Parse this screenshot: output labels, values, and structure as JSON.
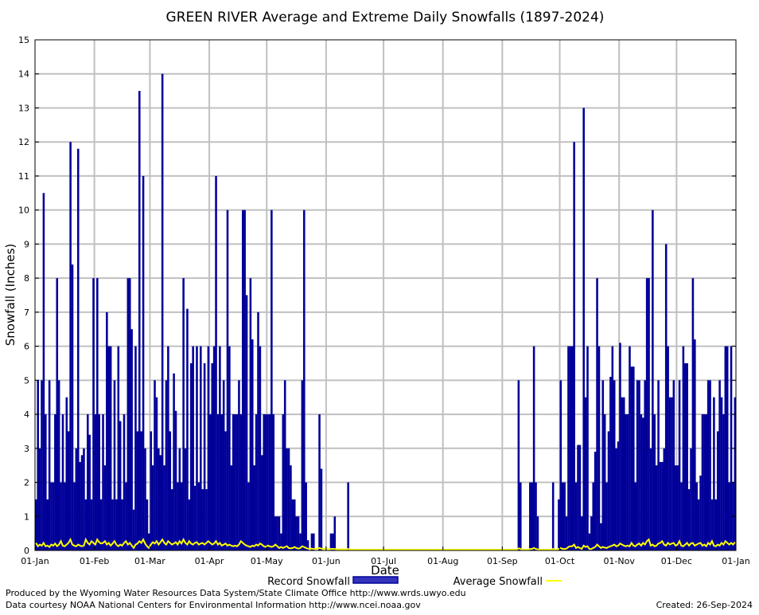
{
  "chart_data": {
    "type": "bar",
    "title": "GREEN RIVER Average and Extreme Daily Snowfalls (1897-2024)",
    "xlabel": "Date",
    "ylabel": "Snowfall (Inches)",
    "ylim": [
      0,
      15
    ],
    "yticks": [
      "0",
      "1",
      "2",
      "3",
      "4",
      "5",
      "6",
      "7",
      "8",
      "9",
      "10",
      "11",
      "12",
      "13",
      "14",
      "15"
    ],
    "xticks": [
      "01-Jan",
      "01-Feb",
      "01-Mar",
      "01-Apr",
      "01-May",
      "01-Jun",
      "01-Jul",
      "01-Aug",
      "01-Sep",
      "01-Oct",
      "01-Nov",
      "01-Dec",
      "01-Jan"
    ],
    "month_lengths": [
      31,
      29,
      31,
      30,
      31,
      30,
      31,
      31,
      30,
      31,
      30,
      31
    ],
    "grid": true,
    "legend_position": "bottom",
    "series": [
      {
        "name": "Record Snowfall",
        "type": "bar",
        "color": "#000099",
        "values_by_month": [
          [
            1.5,
            5,
            3,
            5,
            10.5,
            4,
            1.5,
            5,
            2,
            2,
            4,
            8,
            5,
            2,
            4,
            2,
            4.5,
            3.5,
            12,
            8.4,
            2,
            3,
            11.8,
            2.6,
            2.8,
            3,
            1.5,
            4,
            3.4,
            1.5,
            8
          ],
          [
            4,
            8,
            4,
            1.5,
            4,
            2.5,
            7,
            6,
            6,
            1.5,
            5,
            1.5,
            6,
            3.8,
            1.5,
            4,
            2,
            8,
            8,
            6.5,
            1.2,
            6,
            3.5,
            13.5,
            3.5,
            11,
            3,
            1.5,
            0.5
          ],
          [
            3.5,
            2.5,
            5,
            4.5,
            3,
            2.8,
            14,
            2.5,
            5,
            6,
            3.5,
            1.8,
            5.2,
            4.1,
            2,
            3,
            2,
            8,
            3,
            7.1,
            1.5,
            5.5,
            6,
            1.9,
            6,
            2,
            6,
            1.8,
            5.5,
            1.8,
            6
          ],
          [
            4,
            5.5,
            6,
            11,
            4,
            6,
            4,
            5,
            3.5,
            10,
            6,
            2.5,
            4,
            4,
            4,
            5,
            4,
            10,
            10,
            7.5,
            2,
            8,
            6.2,
            2.5,
            4,
            7,
            6,
            2.8,
            4,
            4
          ],
          [
            4,
            4,
            10,
            4,
            1,
            1,
            1,
            0.5,
            4,
            5,
            3,
            3,
            2.5,
            1.5,
            1.5,
            1,
            1,
            0.5,
            5,
            10,
            2,
            0.3,
            0,
            0.5,
            0.5,
            0,
            0,
            4,
            2.4,
            0,
            0
          ],
          [
            0,
            0,
            0.5,
            0.5,
            1,
            0,
            0,
            0,
            0,
            0,
            0,
            2,
            0,
            0,
            0,
            0,
            0,
            0,
            0,
            0,
            0,
            0,
            0,
            0,
            0,
            0,
            0,
            0,
            0,
            0
          ],
          [
            0,
            0,
            0,
            0,
            0,
            0,
            0,
            0,
            0,
            0,
            0,
            0,
            0,
            0,
            0,
            0,
            0,
            0,
            0,
            0,
            0,
            0,
            0,
            0,
            0,
            0,
            0,
            0,
            0,
            0,
            0
          ],
          [
            0,
            0,
            0,
            0,
            0,
            0,
            0,
            0,
            0,
            0,
            0,
            0,
            0,
            0,
            0,
            0,
            0,
            0,
            0,
            0,
            0,
            0,
            0,
            0,
            0,
            0,
            0,
            0,
            0,
            0,
            0
          ],
          [
            0,
            0,
            0,
            0,
            0,
            0,
            0,
            0,
            5,
            2,
            0,
            0,
            0,
            0,
            2,
            2,
            6,
            2,
            1,
            0,
            0,
            0,
            0,
            0,
            0,
            0,
            2,
            0,
            0,
            1.5
          ],
          [
            5,
            2,
            2,
            1,
            6,
            6,
            6,
            12,
            2,
            3.1,
            3.1,
            1,
            13,
            4.5,
            6,
            0.5,
            1,
            2,
            2.9,
            8,
            6,
            0.8,
            5,
            4,
            2,
            3.5,
            5.1,
            6,
            5,
            3,
            3.2
          ],
          [
            6.1,
            4.5,
            4.5,
            4,
            4,
            6,
            5.4,
            5.4,
            2,
            5,
            5,
            4,
            3.9,
            5,
            8,
            8,
            3,
            10,
            4,
            2.5,
            5,
            2.6,
            2.6,
            3,
            9,
            6,
            4.5,
            4.5,
            5,
            2.5
          ],
          [
            2.5,
            5,
            2,
            6,
            5.5,
            5.5,
            1.8,
            3,
            8,
            6.2,
            2,
            1.5,
            2.2,
            4,
            4,
            4,
            5,
            5,
            1.5,
            4.5,
            1.5,
            3.5,
            5,
            4.5,
            4,
            6,
            6,
            2,
            6,
            2,
            4.5
          ]
        ]
      },
      {
        "name": "Average Snowfall",
        "type": "line",
        "color": "#ffff00",
        "values_by_month": [
          [
            0.2,
            0.1,
            0.15,
            0.12,
            0.2,
            0.1,
            0.12,
            0.08,
            0.15,
            0.12,
            0.18,
            0.1,
            0.15,
            0.25,
            0.12,
            0.1,
            0.15,
            0.2,
            0.3,
            0.15,
            0.12,
            0.1,
            0.15,
            0.12,
            0.1,
            0.12,
            0.3,
            0.2,
            0.15,
            0.25,
            0.2
          ],
          [
            0.15,
            0.3,
            0.22,
            0.18,
            0.2,
            0.25,
            0.15,
            0.2,
            0.12,
            0.18,
            0.25,
            0.15,
            0.1,
            0.15,
            0.12,
            0.2,
            0.25,
            0.15,
            0.2,
            0.12,
            0.05,
            0.15,
            0.18,
            0.25,
            0.2,
            0.3,
            0.18,
            0.1,
            0.05
          ],
          [
            0.15,
            0.22,
            0.18,
            0.25,
            0.15,
            0.22,
            0.3,
            0.2,
            0.15,
            0.25,
            0.2,
            0.15,
            0.18,
            0.22,
            0.15,
            0.25,
            0.18,
            0.3,
            0.2,
            0.15,
            0.25,
            0.18,
            0.15,
            0.2,
            0.22,
            0.15,
            0.18,
            0.2,
            0.15,
            0.2,
            0.25
          ],
          [
            0.2,
            0.15,
            0.18,
            0.25,
            0.15,
            0.2,
            0.12,
            0.15,
            0.18,
            0.12,
            0.15,
            0.12,
            0.1,
            0.12,
            0.1,
            0.15,
            0.25,
            0.2,
            0.15,
            0.12,
            0.1,
            0.08,
            0.12,
            0.1,
            0.15,
            0.12,
            0.18,
            0.15,
            0.1,
            0.08
          ],
          [
            0.12,
            0.1,
            0.08,
            0.1,
            0.15,
            0.1,
            0.05,
            0.08,
            0.05,
            0.08,
            0.1,
            0.05,
            0.04,
            0.05,
            0.08,
            0.05,
            0.03,
            0.05,
            0.1,
            0.08,
            0.05,
            0.03,
            0.02,
            0.03,
            0.02,
            0.02,
            0.03,
            0.05,
            0.03,
            0.02,
            0.02
          ],
          [
            0.02,
            0.01,
            0.02,
            0.02,
            0.02,
            0.01,
            0.01,
            0.01,
            0.01,
            0.01,
            0.01,
            0.02,
            0,
            0,
            0,
            0,
            0,
            0,
            0,
            0,
            0,
            0,
            0,
            0,
            0,
            0,
            0,
            0,
            0,
            0
          ],
          [
            0,
            0,
            0,
            0,
            0,
            0,
            0,
            0,
            0,
            0,
            0,
            0,
            0,
            0,
            0,
            0,
            0,
            0,
            0,
            0,
            0,
            0,
            0,
            0,
            0,
            0,
            0,
            0,
            0,
            0,
            0
          ],
          [
            0,
            0,
            0,
            0,
            0,
            0,
            0,
            0,
            0,
            0,
            0,
            0,
            0,
            0,
            0,
            0,
            0,
            0,
            0,
            0,
            0,
            0,
            0,
            0,
            0,
            0,
            0,
            0,
            0,
            0,
            0
          ],
          [
            0,
            0,
            0,
            0,
            0,
            0,
            0,
            0,
            0.04,
            0.02,
            0,
            0,
            0,
            0,
            0.02,
            0.02,
            0.05,
            0.02,
            0.01,
            0,
            0,
            0,
            0,
            0,
            0,
            0,
            0.02,
            0,
            0,
            0.02
          ],
          [
            0.05,
            0.02,
            0.02,
            0.03,
            0.08,
            0.1,
            0.1,
            0.15,
            0.05,
            0.08,
            0.05,
            0.02,
            0.12,
            0.08,
            0.1,
            0.02,
            0.02,
            0.05,
            0.08,
            0.15,
            0.1,
            0.05,
            0.08,
            0.06,
            0.05,
            0.08,
            0.1,
            0.12,
            0.15,
            0.1,
            0.12
          ],
          [
            0.18,
            0.15,
            0.12,
            0.1,
            0.12,
            0.1,
            0.2,
            0.12,
            0.1,
            0.15,
            0.18,
            0.12,
            0.2,
            0.15,
            0.25,
            0.3,
            0.12,
            0.15,
            0.1,
            0.12,
            0.18,
            0.2,
            0.25,
            0.15,
            0.12,
            0.2,
            0.15,
            0.18,
            0.2,
            0.12
          ],
          [
            0.15,
            0.25,
            0.12,
            0.1,
            0.15,
            0.2,
            0.12,
            0.18,
            0.2,
            0.12,
            0.15,
            0.18,
            0.2,
            0.12,
            0.15,
            0.1,
            0.2,
            0.15,
            0.25,
            0.12,
            0.1,
            0.15,
            0.12,
            0.2,
            0.15,
            0.25,
            0.2,
            0.15,
            0.2,
            0.15,
            0.22
          ]
        ]
      }
    ]
  },
  "footer": {
    "produced_by": "Produced by the Wyoming Water Resources Data System/State Climate Office http://www.wrds.uwyo.edu",
    "courtesy": "Data courtesy NOAA National Centers for Environmental Information http://www.ncei.noaa.gov",
    "created": "Created:  26-Sep-2024"
  }
}
